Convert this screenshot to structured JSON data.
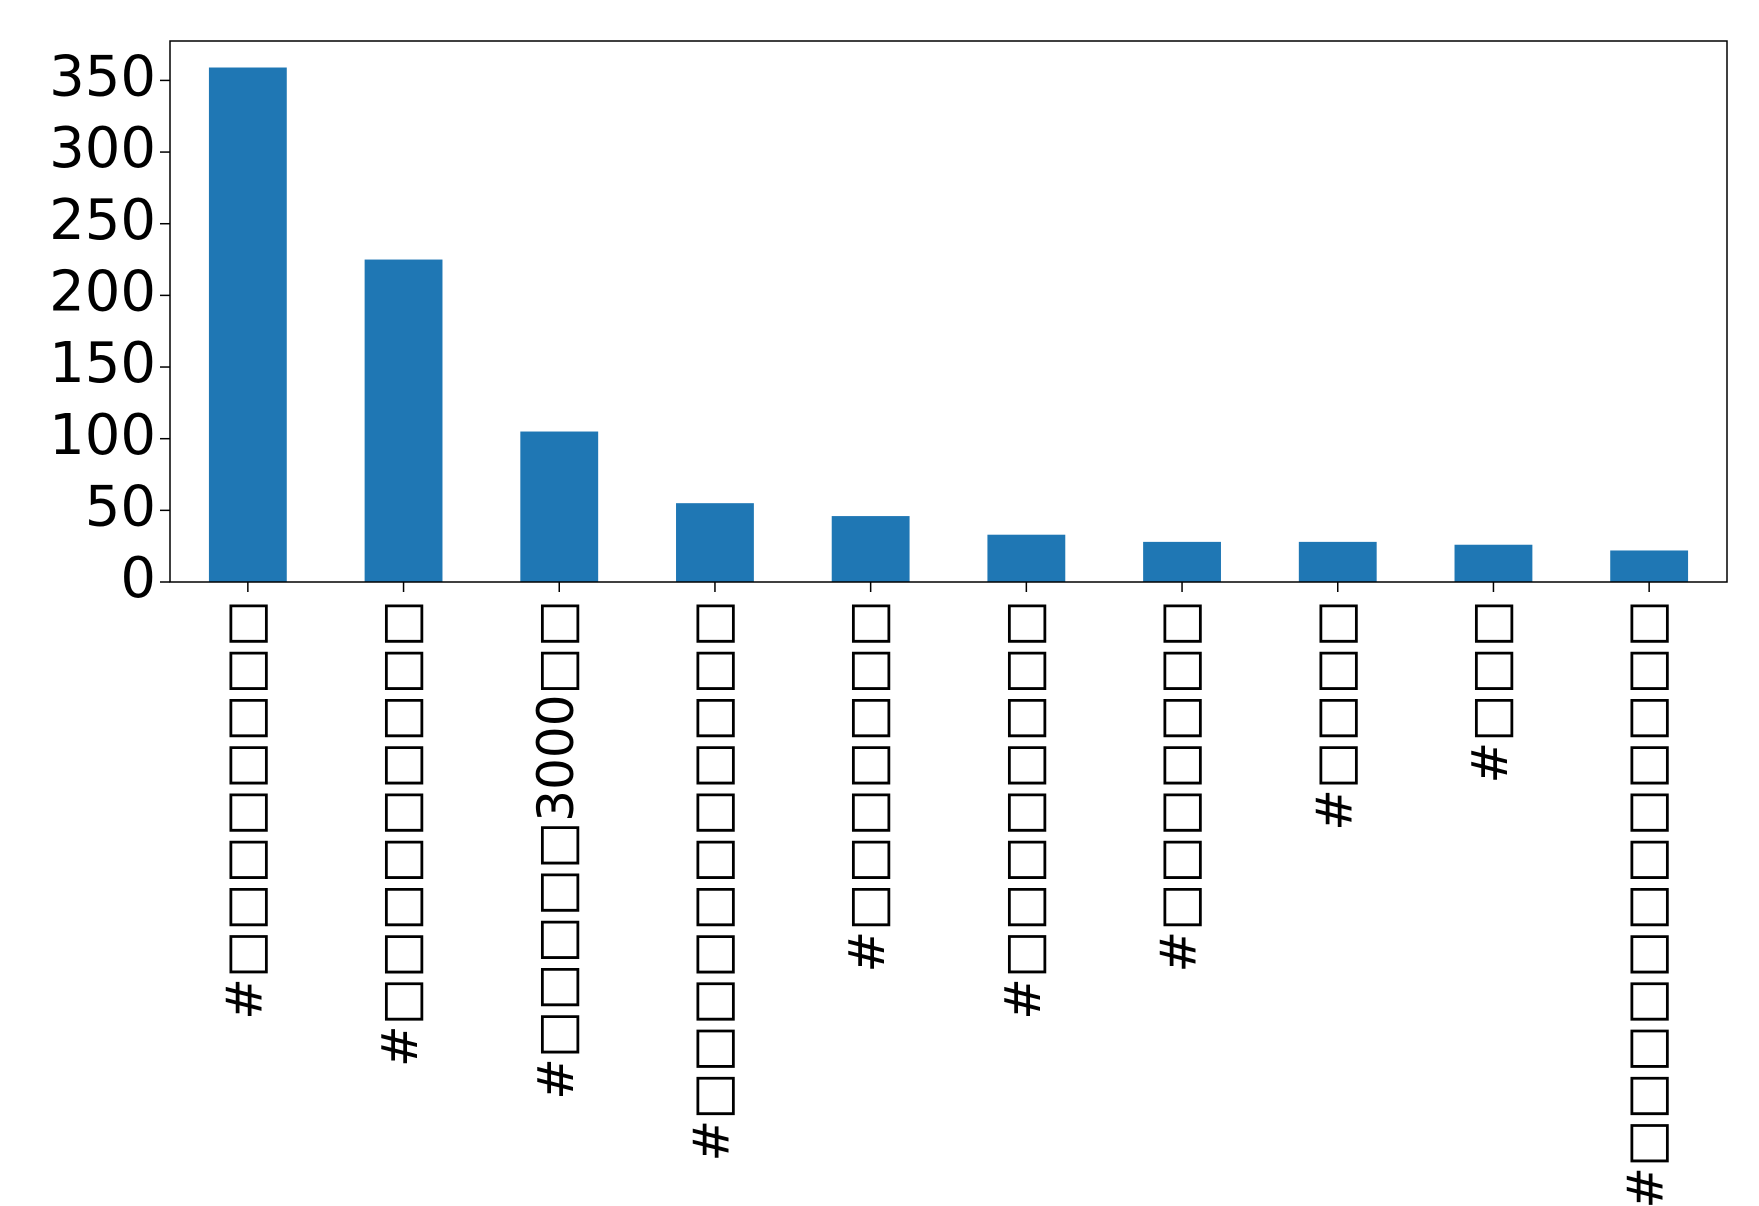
{
  "chart_data": {
    "type": "bar",
    "categories": [
      "#□□□□□□□□",
      "#□□□□□□□□□",
      "#□□□□□3000□□",
      "#□□□□□□□□□□□",
      "#□□□□□□□",
      "#□□□□□□□□",
      "#□□□□□□□",
      "#□□□□",
      "#□□□",
      "#□□□□□□□□□□□□"
    ],
    "values": [
      359,
      225,
      105,
      55,
      46,
      33,
      28,
      28,
      26,
      22
    ],
    "color": "#1f77b4",
    "ylim": [
      0,
      377.5
    ],
    "yticks": [
      0,
      50,
      100,
      150,
      200,
      250,
      300,
      350
    ],
    "grid": false
  }
}
